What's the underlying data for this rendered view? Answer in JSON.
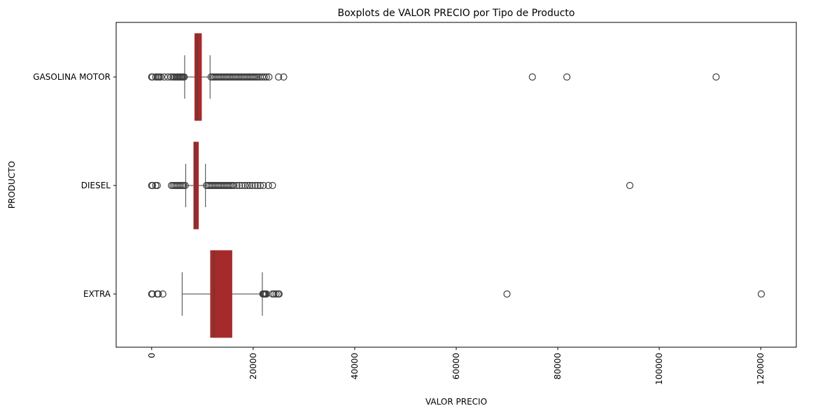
{
  "chart_data": {
    "type": "boxplot",
    "orientation": "horizontal",
    "title": "Boxplots de VALOR PRECIO por Tipo de Producto",
    "xlabel": "VALOR PRECIO",
    "ylabel": "PRODUCTO",
    "xlim": [
      -7000,
      127000
    ],
    "xticks": [
      0,
      20000,
      40000,
      60000,
      80000,
      100000,
      120000
    ],
    "xtick_labels": [
      "0",
      "20000",
      "40000",
      "60000",
      "80000",
      "100000",
      "120000"
    ],
    "xtick_rotation": 90,
    "grid": false,
    "box_color": "#a52a2a",
    "line_color": "#3f3f3f",
    "categories": [
      "GASOLINA MOTOR",
      "DIESEL",
      "EXTRA"
    ],
    "boxes": [
      {
        "name": "GASOLINA MOTOR",
        "whisker_low": 6500,
        "q1": 8500,
        "median": 9000,
        "q3": 9800,
        "whisker_high": 11500,
        "outliers_low": [
          0,
          50,
          100,
          150,
          800,
          1100,
          1300,
          1500,
          1800,
          2500,
          3200,
          3800,
          4200,
          4500,
          4800,
          5000,
          5200,
          5400,
          5600,
          5800,
          6000,
          6200,
          6400
        ],
        "outliers_high": [
          11700,
          12000,
          12300,
          12600,
          12900,
          13200,
          13500,
          13800,
          14100,
          14400,
          14700,
          15000,
          15300,
          15600,
          15900,
          16200,
          16500,
          16800,
          17100,
          17400,
          17700,
          18000,
          18300,
          18600,
          18900,
          19200,
          19500,
          19800,
          20100,
          20400,
          20700,
          21000,
          21400,
          21800,
          22200,
          22600,
          23100,
          25000,
          26000,
          75000,
          81800,
          111200
        ]
      },
      {
        "name": "DIESEL",
        "whisker_low": 6700,
        "q1": 8300,
        "median": 8600,
        "q3": 9200,
        "whisker_high": 10600,
        "outliers_low": [
          0,
          50,
          100,
          150,
          800,
          1100,
          3900,
          4200,
          4500,
          4800,
          5100,
          5400,
          5700,
          6000,
          6300,
          6600
        ],
        "outliers_high": [
          10800,
          11100,
          11400,
          11700,
          12000,
          12300,
          12600,
          12900,
          13200,
          13500,
          13800,
          14100,
          14400,
          14700,
          15000,
          15300,
          15600,
          15900,
          16200,
          16800,
          17300,
          17800,
          18400,
          18900,
          19300,
          19800,
          20400,
          20900,
          21400,
          22000,
          23000,
          23800,
          94200
        ]
      },
      {
        "name": "EXTRA",
        "whisker_low": 6000,
        "q1": 11600,
        "median": 12300,
        "q3": 15800,
        "whisker_high": 21800,
        "outliers_low": [
          0,
          50,
          100,
          150,
          1100,
          1300,
          2200
        ],
        "outliers_high": [
          21900,
          22000,
          22100,
          22200,
          22300,
          22400,
          22600,
          23800,
          24100,
          24500,
          24900,
          25100,
          70000,
          120100
        ]
      }
    ]
  }
}
